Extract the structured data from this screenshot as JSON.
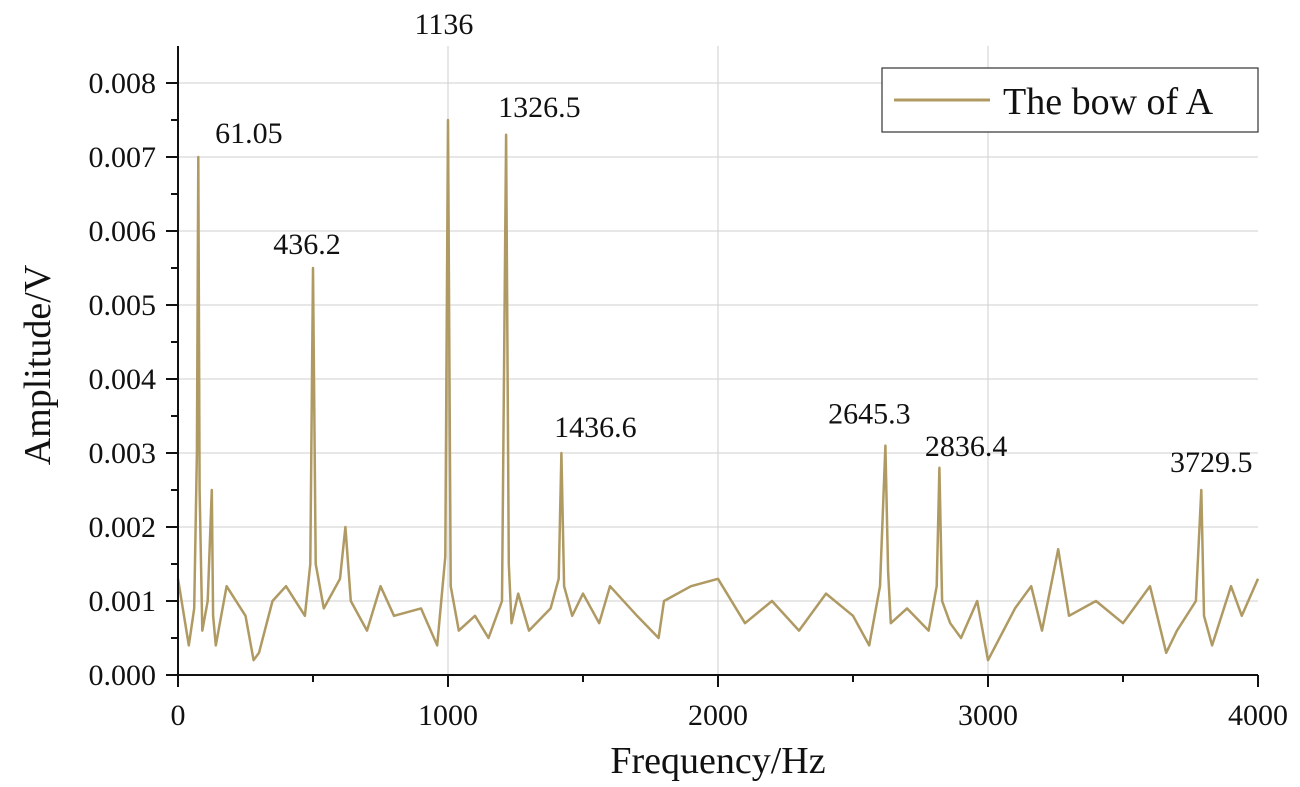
{
  "chart_data": {
    "type": "line",
    "xlabel": "Frequency/Hz",
    "ylabel": "Amplitude/V",
    "xlim": [
      0,
      4000
    ],
    "ylim": [
      0,
      0.0085
    ],
    "x_ticks": [
      "0",
      "1000",
      "2000",
      "3000",
      "4000"
    ],
    "y_ticks": [
      "0.000",
      "0.001",
      "0.002",
      "0.003",
      "0.004",
      "0.005",
      "0.006",
      "0.007",
      "0.008"
    ],
    "grid": true,
    "legend_position": "top-right",
    "series": [
      {
        "name": "The bow of A",
        "color": "#b09a63",
        "x": [
          0,
          40,
          60,
          70,
          75,
          80,
          90,
          110,
          125,
          130,
          140,
          180,
          250,
          280,
          300,
          350,
          400,
          470,
          490,
          500,
          510,
          540,
          600,
          620,
          640,
          700,
          750,
          800,
          900,
          960,
          990,
          1000,
          1010,
          1040,
          1100,
          1150,
          1200,
          1215,
          1225,
          1235,
          1260,
          1300,
          1380,
          1410,
          1420,
          1430,
          1460,
          1500,
          1560,
          1600,
          1700,
          1780,
          1800,
          1900,
          2000,
          2100,
          2200,
          2300,
          2400,
          2500,
          2560,
          2600,
          2620,
          2630,
          2640,
          2700,
          2780,
          2810,
          2820,
          2830,
          2860,
          2900,
          2960,
          3000,
          3100,
          3160,
          3200,
          3260,
          3300,
          3400,
          3500,
          3600,
          3660,
          3700,
          3770,
          3790,
          3800,
          3830,
          3900,
          3940,
          4000
        ],
        "y": [
          0.0013,
          0.0004,
          0.0009,
          0.003,
          0.007,
          0.0025,
          0.0006,
          0.001,
          0.0025,
          0.0008,
          0.0004,
          0.0012,
          0.0008,
          0.0002,
          0.0003,
          0.001,
          0.0012,
          0.0008,
          0.0015,
          0.0055,
          0.0015,
          0.0009,
          0.0013,
          0.002,
          0.001,
          0.0006,
          0.0012,
          0.0008,
          0.0009,
          0.0004,
          0.0016,
          0.0075,
          0.0012,
          0.0006,
          0.0008,
          0.0005,
          0.001,
          0.0073,
          0.0015,
          0.0007,
          0.0011,
          0.0006,
          0.0009,
          0.0013,
          0.003,
          0.0012,
          0.0008,
          0.0011,
          0.0007,
          0.0012,
          0.0008,
          0.0005,
          0.001,
          0.0012,
          0.0013,
          0.0007,
          0.001,
          0.0006,
          0.0011,
          0.0008,
          0.0004,
          0.0012,
          0.0031,
          0.0014,
          0.0007,
          0.0009,
          0.0006,
          0.0012,
          0.0028,
          0.001,
          0.0007,
          0.0005,
          0.001,
          0.0002,
          0.0009,
          0.0012,
          0.0006,
          0.0017,
          0.0008,
          0.001,
          0.0007,
          0.0012,
          0.0003,
          0.0006,
          0.001,
          0.0025,
          0.0008,
          0.0004,
          0.0012,
          0.0008,
          0.0013
        ]
      }
    ],
    "annotations": [
      {
        "text": "61.05",
        "x": 70,
        "y": 0.007
      },
      {
        "text": "436.2",
        "x": 500,
        "y": 0.0055
      },
      {
        "text": "1136",
        "x": 1000,
        "y": 0.0075
      },
      {
        "text": "1326.5",
        "x": 1220,
        "y": 0.0073
      },
      {
        "text": "1436.6",
        "x": 1420,
        "y": 0.003
      },
      {
        "text": "2645.3",
        "x": 2620,
        "y": 0.0031
      },
      {
        "text": "2836.4",
        "x": 2830,
        "y": 0.0028
      },
      {
        "text": "3729.5",
        "x": 3790,
        "y": 0.0025
      }
    ]
  }
}
